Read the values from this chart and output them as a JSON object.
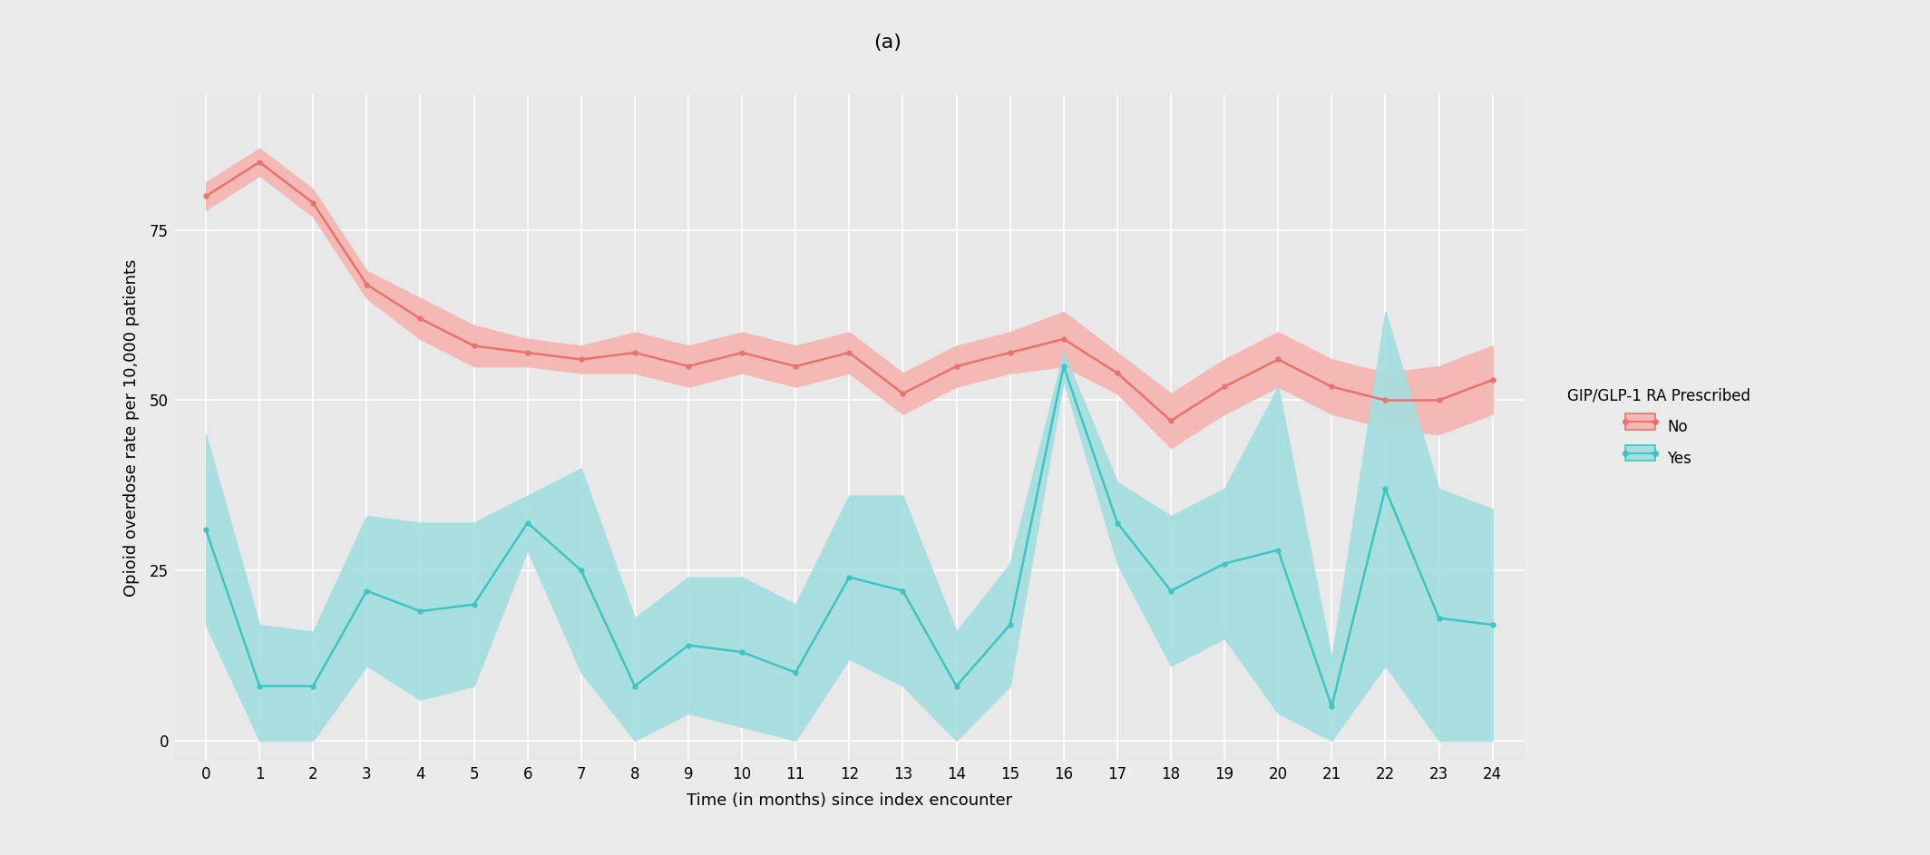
{
  "title": "(a)",
  "xlabel": "Time (in months) since index encounter",
  "ylabel": "Opioid overdose rate per 10,000 patients",
  "x": [
    0,
    1,
    2,
    3,
    4,
    5,
    6,
    7,
    8,
    9,
    10,
    11,
    12,
    13,
    14,
    15,
    16,
    17,
    18,
    19,
    20,
    21,
    22,
    23,
    24
  ],
  "no_mean": [
    80,
    85,
    79,
    67,
    62,
    58,
    57,
    56,
    57,
    55,
    57,
    55,
    57,
    51,
    55,
    57,
    59,
    54,
    47,
    52,
    56,
    52,
    50,
    50,
    53
  ],
  "no_ci_upper": [
    82,
    87,
    81,
    69,
    65,
    61,
    59,
    58,
    60,
    58,
    60,
    58,
    60,
    54,
    58,
    60,
    63,
    57,
    51,
    56,
    60,
    56,
    54,
    55,
    58
  ],
  "no_ci_lower": [
    78,
    83,
    77,
    65,
    59,
    55,
    55,
    54,
    54,
    52,
    54,
    52,
    54,
    48,
    52,
    54,
    55,
    51,
    43,
    48,
    52,
    48,
    46,
    45,
    48
  ],
  "yes_mean": [
    31,
    8,
    8,
    22,
    19,
    20,
    32,
    25,
    8,
    14,
    13,
    10,
    24,
    22,
    8,
    17,
    55,
    32,
    22,
    26,
    28,
    5,
    37,
    18,
    17
  ],
  "yes_ci_upper": [
    45,
    17,
    16,
    33,
    32,
    32,
    36,
    40,
    18,
    24,
    24,
    20,
    36,
    36,
    16,
    26,
    57,
    38,
    33,
    37,
    52,
    12,
    63,
    37,
    34
  ],
  "yes_ci_lower": [
    17,
    0,
    0,
    11,
    6,
    8,
    28,
    10,
    0,
    4,
    2,
    0,
    12,
    8,
    0,
    8,
    53,
    26,
    11,
    15,
    4,
    0,
    11,
    0,
    0
  ],
  "no_color": "#E8736C",
  "yes_color": "#3DC5C0",
  "no_fill_color": "#F4B8B5",
  "yes_fill_color": "#A3DFE0",
  "bg_color": "#EBEBEB",
  "panel_bg_color": "#E8E8E8",
  "title_bar_color": "#D0D0D0",
  "legend_title": "GIP/GLP-1 RA Prescribed",
  "ylim": [
    -3,
    95
  ],
  "yticks": [
    0,
    25,
    50,
    75
  ],
  "figsize": [
    21.28,
    9.43
  ],
  "dpi": 100
}
